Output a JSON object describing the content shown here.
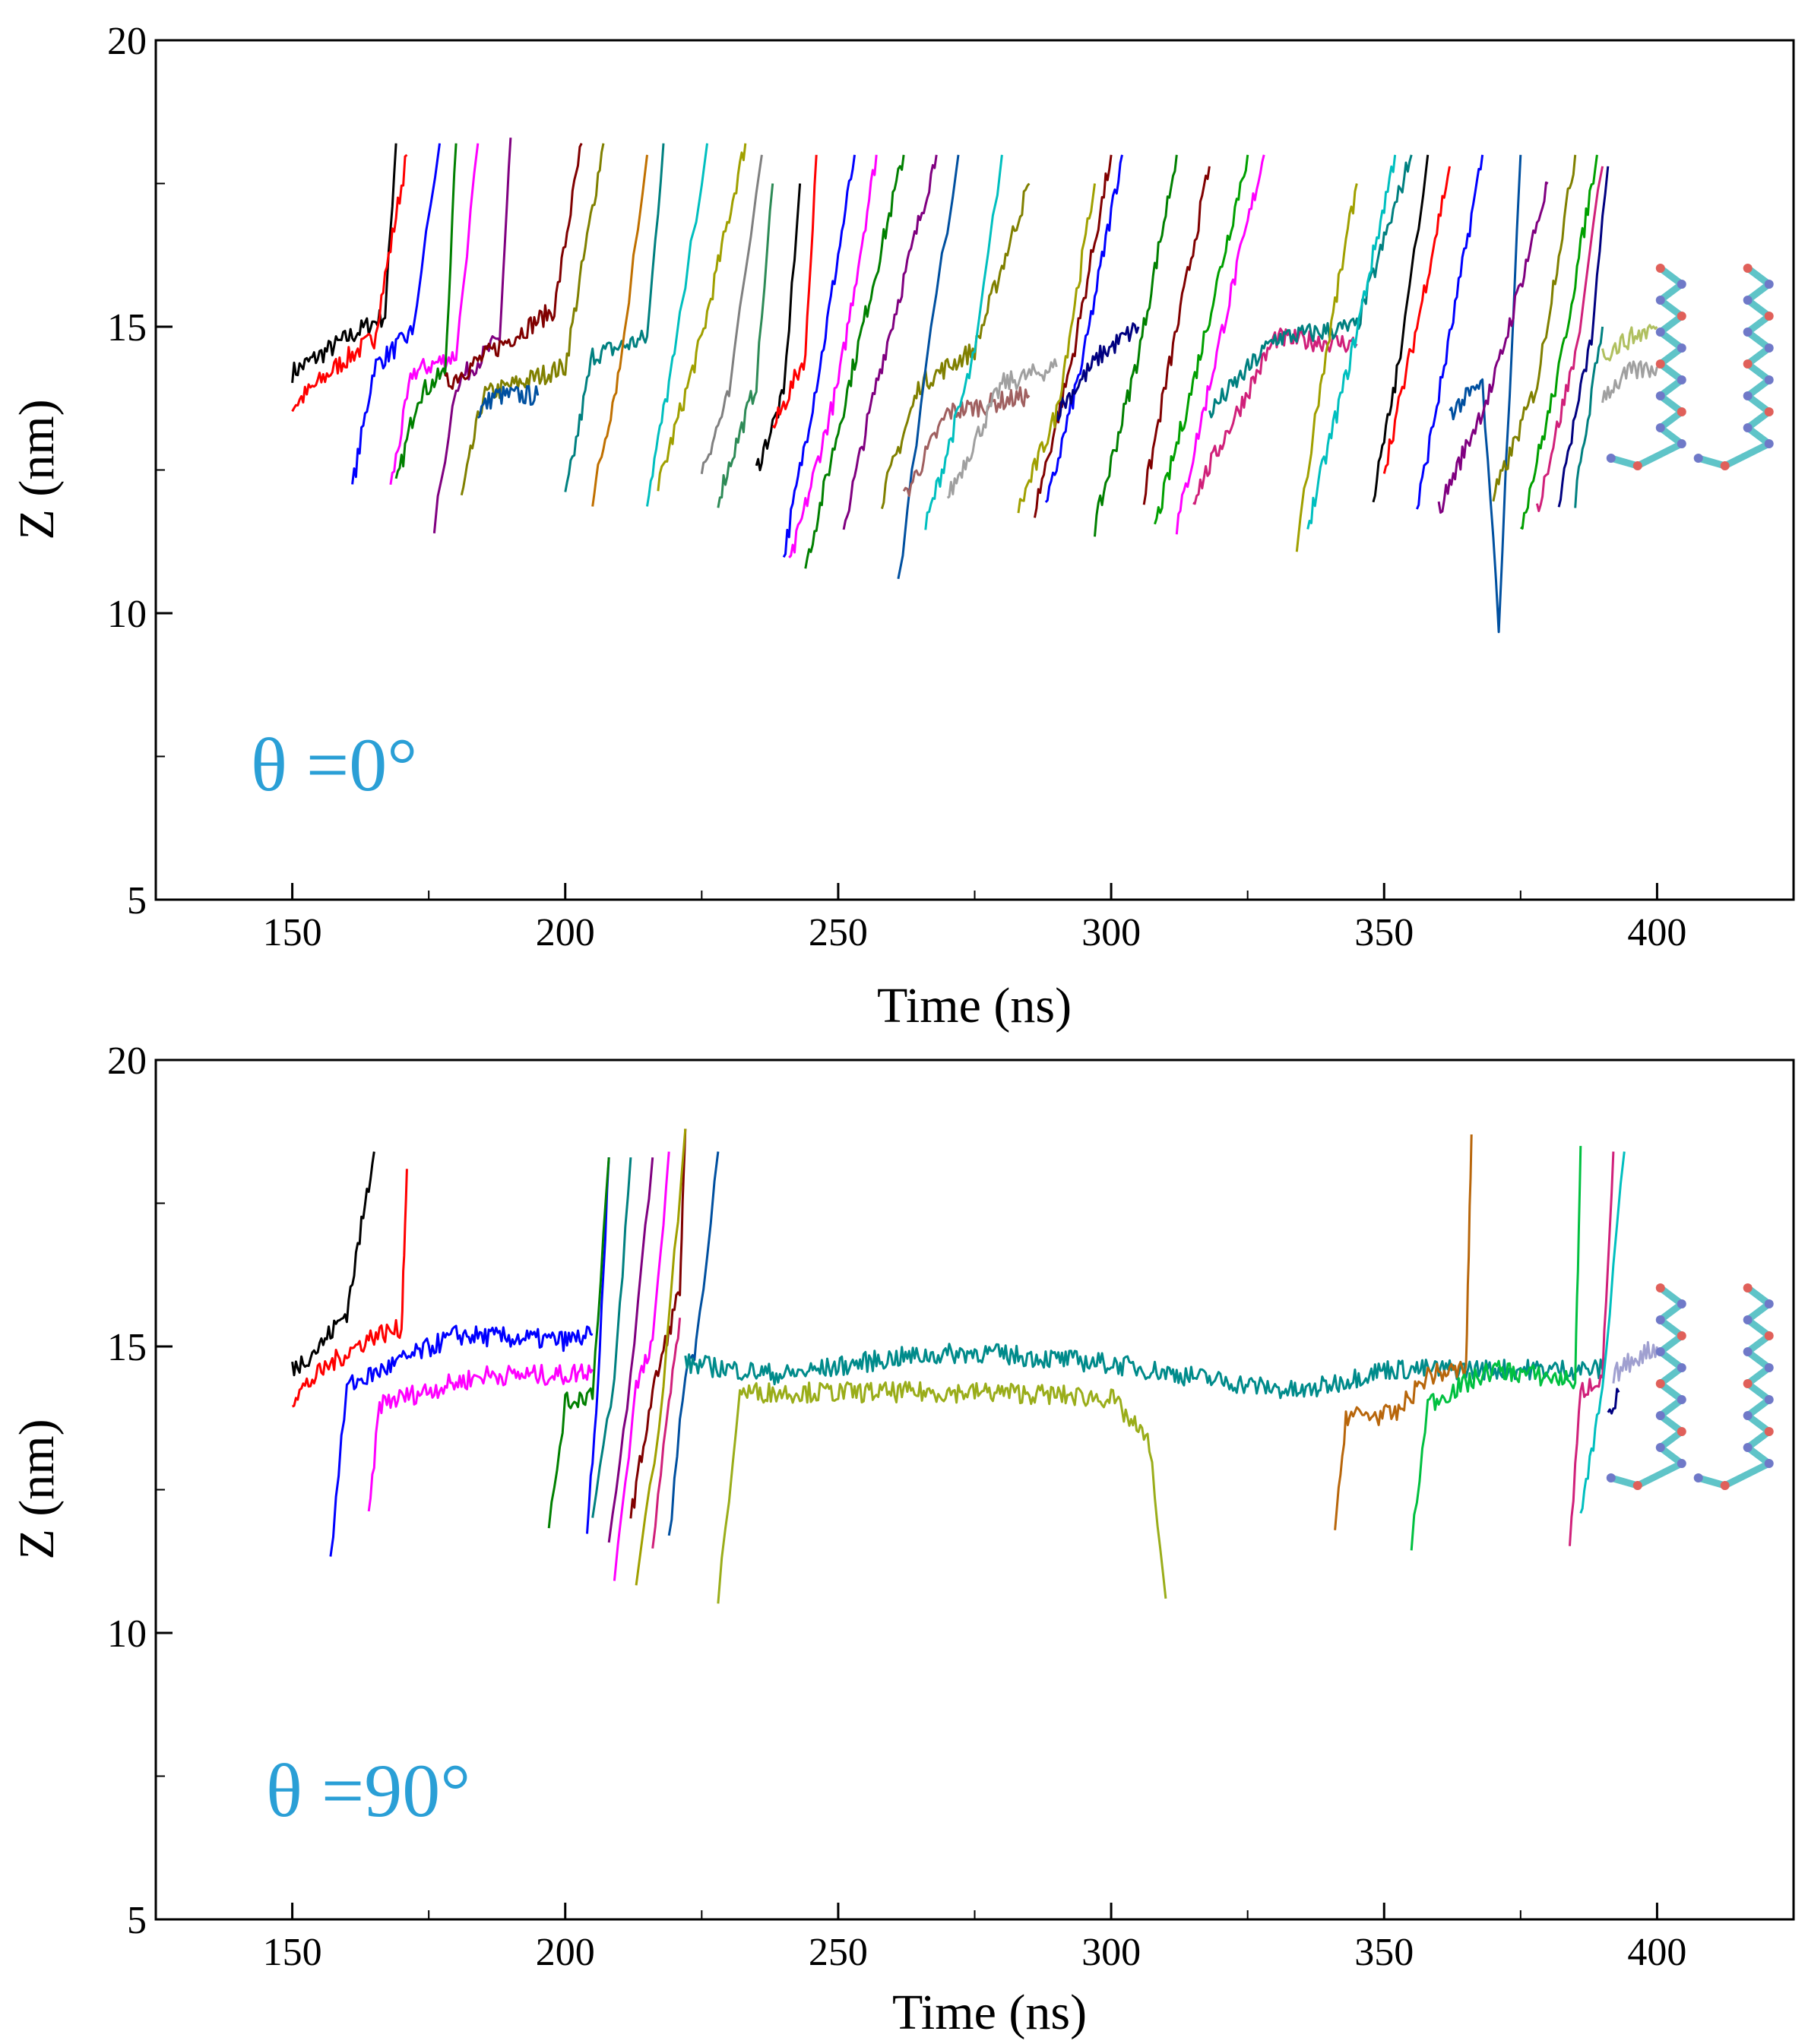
{
  "figure": {
    "panels": [
      {
        "annotation": "θ =0°",
        "xlabel": "Time (ns)",
        "ylabel": "Z (nm)"
      },
      {
        "annotation": "θ =90°",
        "xlabel": "Time (ns)",
        "ylabel": "Z (nm)"
      }
    ]
  },
  "colors": {
    "annotation": "#2a9fd6",
    "inset_molecule_stick": "#5fc4c8",
    "inset_molecule_blue": "#6f79c8",
    "inset_molecule_red": "#e0605a"
  },
  "chart_data": [
    {
      "type": "line",
      "xlabel": "Time (ns)",
      "ylabel": "Z (nm)",
      "xlim": [
        125,
        425
      ],
      "ylim": [
        5,
        20
      ],
      "x_ticks": [
        150,
        200,
        250,
        300,
        350,
        400
      ],
      "y_ticks": [
        5,
        10,
        15,
        20
      ],
      "grid": false,
      "annotation": "θ =0°",
      "inset": "molecule structures (right)",
      "series": [
        {
          "color": "#000000",
          "x": [
            150,
            160,
            167,
            169
          ],
          "values": [
            14.2,
            14.8,
            15.2,
            18.2
          ]
        },
        {
          "color": "#ff0000",
          "x": [
            150,
            158,
            165,
            171
          ],
          "values": [
            13.6,
            14.3,
            14.8,
            18.0
          ]
        },
        {
          "color": "#0000ff",
          "x": [
            161,
            165,
            172,
            177
          ],
          "values": [
            12.2,
            14.3,
            14.9,
            18.2
          ]
        },
        {
          "color": "#ff00ff",
          "x": [
            168,
            172,
            180,
            184
          ],
          "values": [
            12.2,
            14.2,
            14.5,
            18.2
          ]
        },
        {
          "color": "#008000",
          "x": [
            169,
            173,
            178,
            180
          ],
          "values": [
            12.2,
            13.8,
            14.2,
            18.2
          ]
        },
        {
          "color": "#800080",
          "x": [
            176,
            180,
            188,
            190
          ],
          "values": [
            11.5,
            14.0,
            14.8,
            18.3
          ]
        },
        {
          "color": "#808000",
          "x": [
            181,
            185,
            200,
            207
          ],
          "values": [
            12.0,
            13.8,
            14.3,
            18.2
          ]
        },
        {
          "color": "#0050a0",
          "x": [
            184,
            187,
            195
          ],
          "values": [
            13.5,
            13.8,
            13.8
          ]
        },
        {
          "color": "#800000",
          "x": [
            178,
            190,
            198,
            203
          ],
          "values": [
            14.0,
            14.8,
            15.3,
            18.2
          ]
        },
        {
          "color": "#008080",
          "x": [
            200,
            205,
            215,
            218
          ],
          "values": [
            12.0,
            14.5,
            14.8,
            18.2
          ]
        },
        {
          "color": "#c07000",
          "x": [
            205,
            210,
            215
          ],
          "values": [
            12.0,
            14.3,
            18.0
          ]
        },
        {
          "color": "#00bfbf",
          "x": [
            215,
            220,
            226
          ],
          "values": [
            12.0,
            14.5,
            18.2
          ]
        },
        {
          "color": "#a0a000",
          "x": [
            217,
            225,
            233
          ],
          "values": [
            12.2,
            14.8,
            18.2
          ]
        },
        {
          "color": "#808080",
          "x": [
            225,
            230,
            236
          ],
          "values": [
            12.5,
            13.8,
            18.0
          ]
        },
        {
          "color": "#2e8b57",
          "x": [
            228,
            235,
            238
          ],
          "values": [
            12.0,
            14.0,
            17.5
          ]
        },
        {
          "color": "#000000",
          "x": [
            235,
            240,
            243
          ],
          "values": [
            12.5,
            13.8,
            17.5
          ]
        },
        {
          "color": "#ff0000",
          "x": [
            238,
            244,
            246
          ],
          "values": [
            13.2,
            14.5,
            18.0
          ]
        },
        {
          "color": "#0000ff",
          "x": [
            240,
            247,
            253
          ],
          "values": [
            11.0,
            14.5,
            18.0
          ]
        },
        {
          "color": "#ff00ff",
          "x": [
            241,
            250,
            257
          ],
          "values": [
            10.8,
            14.0,
            18.0
          ]
        },
        {
          "color": "#008000",
          "x": [
            244,
            252,
            262
          ],
          "values": [
            10.8,
            14.0,
            18.0
          ]
        },
        {
          "color": "#800080",
          "x": [
            251,
            257,
            268
          ],
          "values": [
            11.5,
            14.0,
            18.0
          ]
        },
        {
          "color": "#808000",
          "x": [
            258,
            265,
            275,
            285
          ],
          "values": [
            12.0,
            14.0,
            14.6,
            17.5
          ]
        },
        {
          "color": "#0050a0",
          "x": [
            261,
            266,
            272
          ],
          "values": [
            10.5,
            14.3,
            18.0
          ]
        },
        {
          "color": "#a06060",
          "x": [
            262,
            270,
            285
          ],
          "values": [
            12.0,
            13.5,
            13.8
          ]
        },
        {
          "color": "#00bfbf",
          "x": [
            266,
            275,
            280
          ],
          "values": [
            11.5,
            14.5,
            18.0
          ]
        },
        {
          "color": "#a0a0a0",
          "x": [
            270,
            280,
            290
          ],
          "values": [
            12.0,
            14.0,
            14.3
          ]
        },
        {
          "color": "#800000",
          "x": [
            286,
            293,
            300
          ],
          "values": [
            11.8,
            14.5,
            18.0
          ]
        },
        {
          "color": "#0000ff",
          "x": [
            288,
            295,
            302
          ],
          "values": [
            11.8,
            14.5,
            18.0
          ]
        },
        {
          "color": "#000080",
          "x": [
            290,
            298,
            305
          ],
          "values": [
            13.5,
            14.5,
            15.0
          ]
        },
        {
          "color": "#a0a000",
          "x": [
            283,
            290,
            297
          ],
          "values": [
            11.8,
            13.5,
            17.5
          ]
        },
        {
          "color": "#008000",
          "x": [
            297,
            305,
            312
          ],
          "values": [
            11.5,
            14.5,
            18.0
          ]
        },
        {
          "color": "#800000",
          "x": [
            306,
            310,
            318
          ],
          "values": [
            12.0,
            14.0,
            17.8
          ]
        },
        {
          "color": "#00a000",
          "x": [
            308,
            315,
            325
          ],
          "values": [
            11.5,
            14.0,
            18.0
          ]
        },
        {
          "color": "#ff00ff",
          "x": [
            312,
            320,
            328
          ],
          "values": [
            11.5,
            14.8,
            18.0
          ]
        },
        {
          "color": "#d0207a",
          "x": [
            315,
            330,
            345
          ],
          "values": [
            12.0,
            14.8,
            14.7
          ]
        },
        {
          "color": "#008080",
          "x": [
            318,
            330,
            345,
            355
          ],
          "values": [
            13.5,
            14.8,
            15.0,
            18.0
          ]
        },
        {
          "color": "#a0a000",
          "x": [
            334,
            338,
            345
          ],
          "values": [
            11.2,
            13.8,
            17.5
          ]
        },
        {
          "color": "#00bfbf",
          "x": [
            336,
            344,
            352
          ],
          "values": [
            11.5,
            14.5,
            18.0
          ]
        },
        {
          "color": "#000000",
          "x": [
            348,
            353,
            358
          ],
          "values": [
            12.0,
            14.5,
            18.0
          ]
        },
        {
          "color": "#ff0000",
          "x": [
            350,
            356,
            362
          ],
          "values": [
            12.5,
            15.0,
            17.8
          ]
        },
        {
          "color": "#0000ff",
          "x": [
            356,
            362,
            368
          ],
          "values": [
            11.8,
            14.8,
            18.0
          ]
        },
        {
          "color": "#0050a0",
          "x": [
            362,
            368,
            371,
            375
          ],
          "values": [
            13.5,
            14.0,
            9.8,
            18.0
          ]
        },
        {
          "color": "#800080",
          "x": [
            360,
            370,
            380
          ],
          "values": [
            11.8,
            14.0,
            17.5
          ]
        },
        {
          "color": "#808000",
          "x": [
            370,
            378,
            385
          ],
          "values": [
            12.0,
            14.0,
            18.0
          ]
        },
        {
          "color": "#00a000",
          "x": [
            375,
            382,
            389
          ],
          "values": [
            11.5,
            14.2,
            18.0
          ]
        },
        {
          "color": "#d0207a",
          "x": [
            378,
            385,
            390
          ],
          "values": [
            11.8,
            14.5,
            17.8
          ]
        },
        {
          "color": "#000080",
          "x": [
            382,
            388,
            391
          ],
          "values": [
            12.0,
            14.8,
            17.8
          ]
        },
        {
          "color": "#008080",
          "x": [
            385,
            390
          ],
          "values": [
            12.0,
            15.0
          ]
        },
        {
          "color": "#a0a0a0",
          "x": [
            390,
            395,
            400
          ],
          "values": [
            13.8,
            14.2,
            14.3
          ]
        },
        {
          "color": "#b0c060",
          "x": [
            390,
            395,
            400
          ],
          "values": [
            14.5,
            14.8,
            15.0
          ]
        }
      ]
    },
    {
      "type": "line",
      "xlabel": "Time (ns)",
      "ylabel": "Z (nm)",
      "xlim": [
        125,
        425
      ],
      "ylim": [
        5,
        20
      ],
      "x_ticks": [
        150,
        200,
        250,
        300,
        350,
        400
      ],
      "y_ticks": [
        5,
        10,
        15,
        20
      ],
      "grid": false,
      "annotation": "θ =90°",
      "inset": "molecule structures (right)",
      "series": [
        {
          "color": "#000000",
          "x": [
            150,
            155,
            160,
            165
          ],
          "values": [
            14.6,
            15.0,
            15.6,
            18.4
          ]
        },
        {
          "color": "#ff0000",
          "x": [
            150,
            157,
            165,
            170,
            171
          ],
          "values": [
            14.1,
            14.7,
            15.2,
            15.3,
            18.1
          ]
        },
        {
          "color": "#0000ff",
          "x": [
            157,
            160,
            180,
            200,
            205
          ],
          "values": [
            11.3,
            14.3,
            15.2,
            15.1,
            15.2
          ]
        },
        {
          "color": "#ff00ff",
          "x": [
            164,
            166,
            185,
            200,
            205
          ],
          "values": [
            12.0,
            14.0,
            14.5,
            14.5,
            14.6
          ]
        },
        {
          "color": "#0000ff",
          "x": [
            204,
            206,
            208
          ],
          "values": [
            11.8,
            14.4,
            18.3
          ]
        },
        {
          "color": "#008000",
          "x": [
            197,
            200,
            205,
            208
          ],
          "values": [
            11.8,
            14.0,
            14.2,
            18.3
          ]
        },
        {
          "color": "#008080",
          "x": [
            205,
            209,
            212
          ],
          "values": [
            12.0,
            14.4,
            18.3
          ]
        },
        {
          "color": "#800080",
          "x": [
            208,
            212,
            216
          ],
          "values": [
            11.5,
            14.5,
            18.3
          ]
        },
        {
          "color": "#ff00ff",
          "x": [
            209,
            213,
            216,
            219
          ],
          "values": [
            11.0,
            14.3,
            15.0,
            18.4
          ]
        },
        {
          "color": "#800000",
          "x": [
            212,
            216,
            221,
            222
          ],
          "values": [
            12.0,
            14.2,
            16.0,
            18.8
          ]
        },
        {
          "color": "#a0a000",
          "x": [
            213,
            218,
            222
          ],
          "values": [
            10.7,
            14.3,
            18.8
          ]
        },
        {
          "color": "#0050a0",
          "x": [
            219,
            222,
            224,
            228
          ],
          "values": [
            11.6,
            14.6,
            15.0,
            18.4
          ]
        },
        {
          "color": "#d0207a",
          "x": [
            216,
            219,
            221
          ],
          "values": [
            11.6,
            14.0,
            15.5
          ]
        },
        {
          "color": "#008b8b",
          "x": [
            222,
            240,
            260,
            275,
            300,
            320,
            335,
            350,
            370,
            390
          ],
          "values": [
            14.7,
            14.5,
            14.8,
            14.9,
            14.7,
            14.4,
            14.2,
            14.6,
            14.6,
            14.6
          ]
        },
        {
          "color": "#9aad1a",
          "x": [
            228,
            232,
            250,
            280,
            300,
            307,
            310
          ],
          "values": [
            10.6,
            14.2,
            14.2,
            14.2,
            14.1,
            13.3,
            10.6
          ]
        },
        {
          "color": "#b8660b",
          "x": [
            341,
            343,
            352,
            358,
            365,
            366
          ],
          "values": [
            11.7,
            13.8,
            13.8,
            14.5,
            14.6,
            18.7
          ]
        },
        {
          "color": "#00c040",
          "x": [
            355,
            358,
            370,
            385,
            386
          ],
          "values": [
            11.5,
            14.0,
            14.6,
            14.4,
            18.5
          ]
        },
        {
          "color": "#d0207a",
          "x": [
            384,
            386,
            390,
            392
          ],
          "values": [
            11.5,
            14.2,
            14.5,
            18.4
          ]
        },
        {
          "color": "#00bfbf",
          "x": [
            386,
            390,
            394
          ],
          "values": [
            12.0,
            14.2,
            18.4
          ]
        },
        {
          "color": "#a0a0d0",
          "x": [
            392,
            396,
            400
          ],
          "values": [
            14.5,
            14.8,
            15.0
          ]
        },
        {
          "color": "#000080",
          "x": [
            391,
            393
          ],
          "values": [
            13.8,
            14.2
          ]
        }
      ]
    }
  ]
}
